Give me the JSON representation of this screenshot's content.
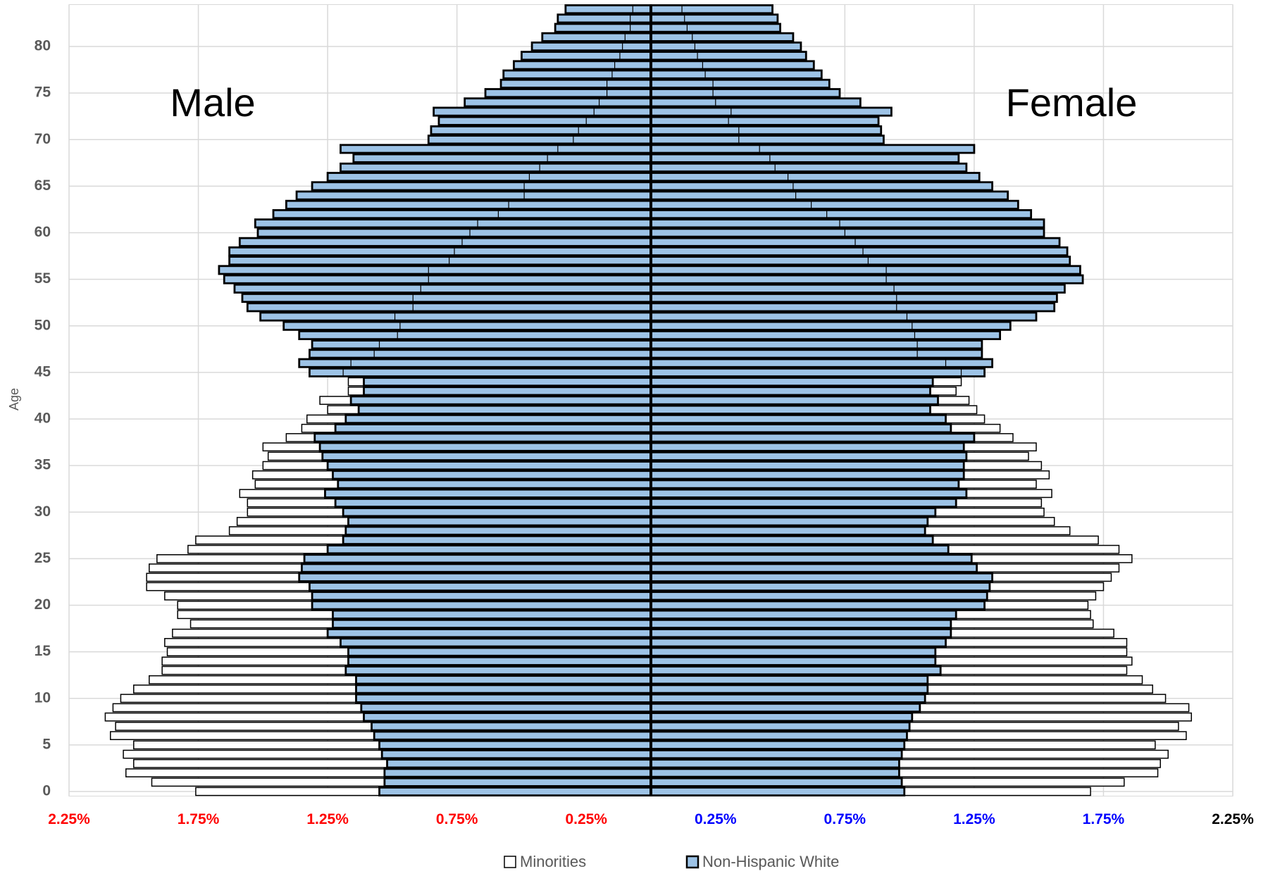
{
  "chart_data": {
    "type": "pyramid",
    "annotations": [
      {
        "text": "Male",
        "side": "left"
      },
      {
        "text": "Female",
        "side": "right"
      }
    ],
    "y_label": "Age",
    "y": [
      0,
      1,
      2,
      3,
      4,
      5,
      6,
      7,
      8,
      9,
      10,
      11,
      12,
      13,
      14,
      15,
      16,
      17,
      18,
      19,
      20,
      21,
      22,
      23,
      24,
      25,
      26,
      27,
      28,
      29,
      30,
      31,
      32,
      33,
      34,
      35,
      36,
      37,
      38,
      39,
      40,
      41,
      42,
      43,
      44,
      45,
      46,
      47,
      48,
      49,
      50,
      51,
      52,
      53,
      54,
      55,
      56,
      57,
      58,
      59,
      60,
      61,
      62,
      63,
      64,
      65,
      66,
      67,
      68,
      69,
      70,
      71,
      72,
      73,
      74,
      75,
      76,
      77,
      78,
      79,
      80,
      81,
      82,
      83,
      84
    ],
    "ylim": [
      -0.5,
      84.5
    ],
    "yticks": [
      0,
      5,
      10,
      15,
      20,
      25,
      30,
      35,
      40,
      45,
      50,
      55,
      60,
      65,
      70,
      75,
      80
    ],
    "xlim": [
      -2.25,
      2.25
    ],
    "xticks": [
      {
        "value": -2.25,
        "label": "2.25%",
        "color": "#ff0000"
      },
      {
        "value": -1.75,
        "label": "1.75%",
        "color": "#ff0000"
      },
      {
        "value": -1.25,
        "label": "1.25%",
        "color": "#ff0000"
      },
      {
        "value": -0.75,
        "label": "0.75%",
        "color": "#ff0000"
      },
      {
        "value": -0.25,
        "label": "0.25%",
        "color": "#ff0000"
      },
      {
        "value": 0.25,
        "label": "0.25%",
        "color": "#0000ff"
      },
      {
        "value": 0.75,
        "label": "0.75%",
        "color": "#0000ff"
      },
      {
        "value": 1.25,
        "label": "1.25%",
        "color": "#0000ff"
      },
      {
        "value": 1.75,
        "label": "1.75%",
        "color": "#0000ff"
      },
      {
        "value": 2.25,
        "label": "2.25%",
        "color": "#000000"
      }
    ],
    "grid": true,
    "legend": "bottom",
    "series": [
      {
        "name": "Minorities",
        "color": "#ffffff",
        "male": [
          -1.76,
          -1.93,
          -2.03,
          -2.0,
          -2.04,
          -2.0,
          -2.09,
          -2.07,
          -2.11,
          -2.08,
          -2.05,
          -2.0,
          -1.94,
          -1.89,
          -1.89,
          -1.87,
          -1.88,
          -1.85,
          -1.78,
          -1.83,
          -1.83,
          -1.88,
          -1.95,
          -1.95,
          -1.94,
          -1.91,
          -1.79,
          -1.76,
          -1.63,
          -1.6,
          -1.56,
          -1.56,
          -1.59,
          -1.53,
          -1.54,
          -1.5,
          -1.48,
          -1.5,
          -1.41,
          -1.35,
          -1.33,
          -1.25,
          -1.28,
          -1.17,
          -1.17,
          -1.19,
          -1.16,
          -1.07,
          -1.05,
          -0.98,
          -0.97,
          -0.99,
          -0.92,
          -0.92,
          -0.89,
          -0.86,
          -0.86,
          -0.78,
          -0.76,
          -0.73,
          -0.7,
          -0.67,
          -0.59,
          -0.55,
          -0.49,
          -0.49,
          -0.47,
          -0.43,
          -0.4,
          -0.36,
          -0.3,
          -0.28,
          -0.25,
          -0.22,
          -0.2,
          -0.17,
          -0.17,
          -0.15,
          -0.14,
          -0.12,
          -0.11,
          -0.1,
          -0.08,
          -0.08,
          -0.07
        ],
        "female": [
          1.7,
          1.83,
          1.96,
          1.97,
          2.0,
          1.95,
          2.07,
          2.04,
          2.09,
          2.08,
          1.99,
          1.94,
          1.9,
          1.84,
          1.86,
          1.84,
          1.84,
          1.79,
          1.71,
          1.7,
          1.69,
          1.72,
          1.75,
          1.78,
          1.81,
          1.86,
          1.81,
          1.73,
          1.62,
          1.56,
          1.52,
          1.51,
          1.55,
          1.49,
          1.54,
          1.51,
          1.46,
          1.49,
          1.4,
          1.35,
          1.29,
          1.26,
          1.23,
          1.18,
          1.2,
          1.2,
          1.14,
          1.03,
          1.03,
          1.02,
          1.01,
          0.99,
          0.95,
          0.95,
          0.94,
          0.91,
          0.91,
          0.84,
          0.82,
          0.79,
          0.75,
          0.73,
          0.68,
          0.62,
          0.56,
          0.55,
          0.53,
          0.48,
          0.46,
          0.42,
          0.34,
          0.34,
          0.3,
          0.31,
          0.25,
          0.24,
          0.24,
          0.21,
          0.2,
          0.18,
          0.17,
          0.16,
          0.14,
          0.13,
          0.12
        ]
      },
      {
        "name": "Non-Hispanic White",
        "color": "#9dc3e6",
        "male": [
          -1.05,
          -1.03,
          -1.03,
          -1.02,
          -1.04,
          -1.05,
          -1.07,
          -1.08,
          -1.11,
          -1.12,
          -1.14,
          -1.14,
          -1.14,
          -1.18,
          -1.17,
          -1.17,
          -1.2,
          -1.25,
          -1.23,
          -1.23,
          -1.31,
          -1.31,
          -1.32,
          -1.36,
          -1.35,
          -1.34,
          -1.25,
          -1.19,
          -1.18,
          -1.17,
          -1.19,
          -1.22,
          -1.26,
          -1.21,
          -1.23,
          -1.25,
          -1.27,
          -1.28,
          -1.3,
          -1.22,
          -1.18,
          -1.13,
          -1.16,
          -1.11,
          -1.11,
          -1.32,
          -1.36,
          -1.32,
          -1.31,
          -1.36,
          -1.42,
          -1.51,
          -1.56,
          -1.58,
          -1.61,
          -1.65,
          -1.67,
          -1.63,
          -1.63,
          -1.59,
          -1.52,
          -1.53,
          -1.46,
          -1.41,
          -1.37,
          -1.31,
          -1.25,
          -1.2,
          -1.15,
          -1.2,
          -0.86,
          -0.85,
          -0.82,
          -0.84,
          -0.72,
          -0.64,
          -0.58,
          -0.57,
          -0.53,
          -0.5,
          -0.46,
          -0.42,
          -0.37,
          -0.36,
          -0.33
        ],
        "female": [
          0.98,
          0.97,
          0.96,
          0.96,
          0.97,
          0.98,
          0.99,
          1.0,
          1.01,
          1.04,
          1.06,
          1.07,
          1.07,
          1.12,
          1.1,
          1.1,
          1.14,
          1.16,
          1.16,
          1.18,
          1.29,
          1.3,
          1.31,
          1.32,
          1.26,
          1.24,
          1.15,
          1.09,
          1.06,
          1.07,
          1.1,
          1.18,
          1.22,
          1.19,
          1.21,
          1.21,
          1.22,
          1.21,
          1.25,
          1.16,
          1.14,
          1.08,
          1.11,
          1.08,
          1.09,
          1.29,
          1.32,
          1.28,
          1.28,
          1.35,
          1.39,
          1.49,
          1.56,
          1.57,
          1.6,
          1.67,
          1.66,
          1.62,
          1.61,
          1.58,
          1.52,
          1.52,
          1.47,
          1.42,
          1.38,
          1.32,
          1.27,
          1.22,
          1.19,
          1.25,
          0.9,
          0.89,
          0.88,
          0.93,
          0.81,
          0.73,
          0.69,
          0.66,
          0.63,
          0.6,
          0.58,
          0.55,
          0.5,
          0.49,
          0.47
        ]
      }
    ]
  }
}
